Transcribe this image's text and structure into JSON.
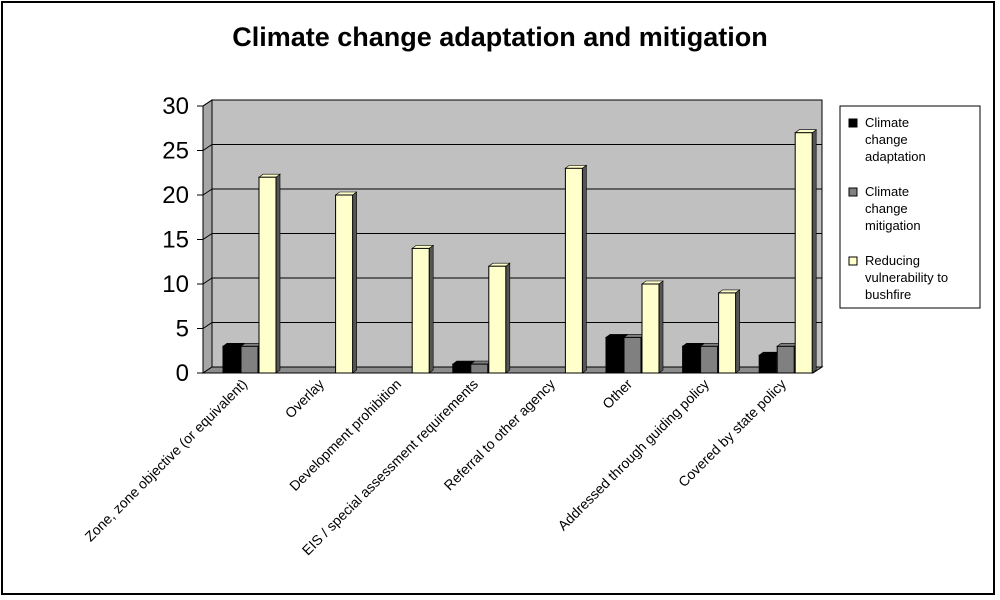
{
  "chart_data": {
    "type": "bar",
    "title": "Climate change adaptation and mitigation",
    "xlabel": "",
    "ylabel": "",
    "ylim": [
      0,
      30
    ],
    "yticks": [
      0,
      5,
      10,
      15,
      20,
      25,
      30
    ],
    "grid": true,
    "legend_position": "right",
    "categories": [
      "Zone, zone objective (or equivalent)",
      "Overlay",
      "Development prohibition",
      "EIS / special assessment requirements",
      "Referral to other agency",
      "Other",
      "Addressed through guiding policy",
      "Covered by state policy"
    ],
    "series": [
      {
        "name": "Climate change adaptation",
        "color": "#000000",
        "values": [
          3,
          0,
          0,
          1,
          0,
          4,
          3,
          2
        ]
      },
      {
        "name": "Climate change mitigation",
        "color": "#808080",
        "values": [
          3,
          0,
          0,
          1,
          0,
          4,
          3,
          3
        ]
      },
      {
        "name": "Reducing vulnerability to bushfire",
        "color": "#ffffcc",
        "values": [
          22,
          20,
          14,
          12,
          23,
          10,
          9,
          27
        ]
      }
    ],
    "legend": [
      {
        "lines": [
          "Climate",
          "change",
          "adaptation"
        ]
      },
      {
        "lines": [
          "Climate",
          "change",
          "mitigation"
        ]
      },
      {
        "lines": [
          "Reducing",
          "vulnerability to",
          "bushfire"
        ]
      }
    ],
    "plot_background": "#c0c0c0"
  }
}
